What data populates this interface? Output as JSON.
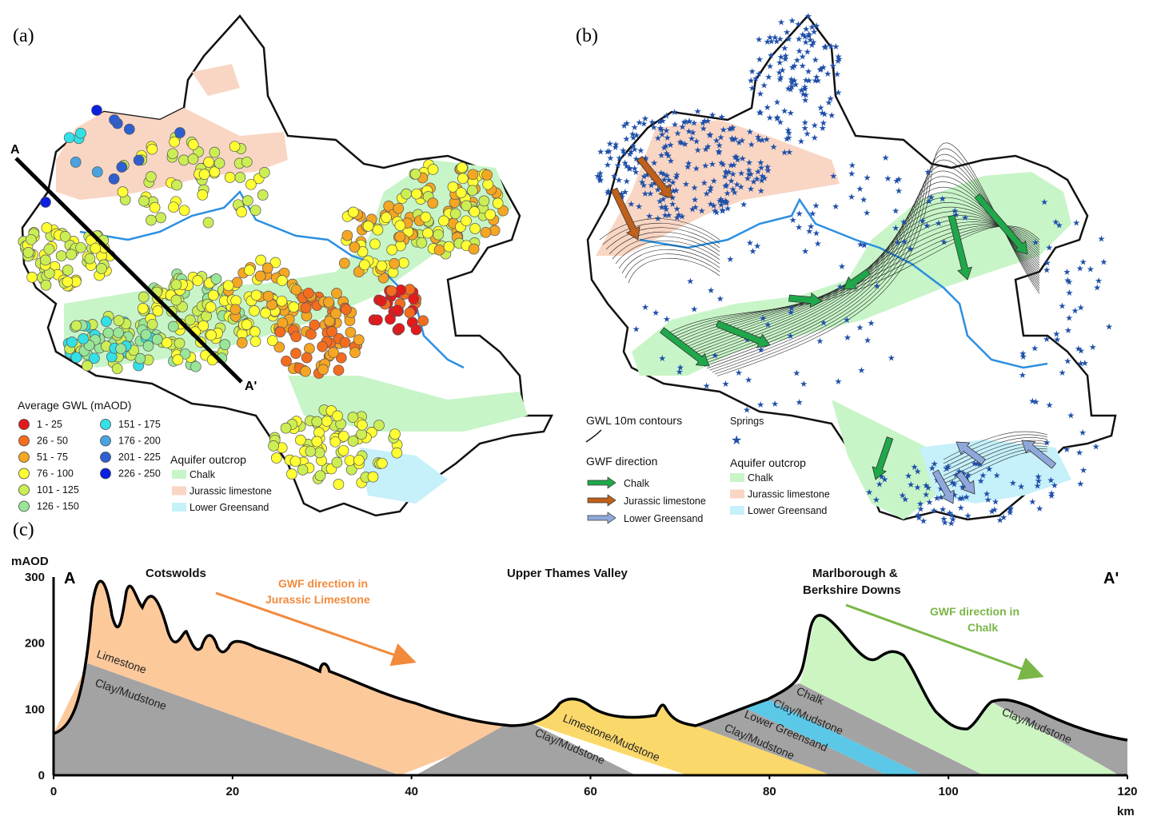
{
  "panels": {
    "a": "(a)",
    "b": "(b)",
    "c": "(c)"
  },
  "panel_a": {
    "section_start": "A",
    "section_end": "A'",
    "gwl_legend_title": "Average GWL (mAOD)",
    "gwl_classes": [
      {
        "label": "1 - 25",
        "color": "#e31a1c"
      },
      {
        "label": "26 - 50",
        "color": "#f46d1f"
      },
      {
        "label": "51 - 75",
        "color": "#f5a623"
      },
      {
        "label": "76 - 100",
        "color": "#ffff33"
      },
      {
        "label": "101 - 125",
        "color": "#ccee55"
      },
      {
        "label": "126 - 150",
        "color": "#99e699"
      },
      {
        "label": "151 - 175",
        "color": "#33e0e6"
      },
      {
        "label": "176 - 200",
        "color": "#4aa3e0"
      },
      {
        "label": "201 - 225",
        "color": "#2f5fcf"
      },
      {
        "label": "226 - 250",
        "color": "#0a1fe0"
      }
    ],
    "aquifer_title": "Aquifer outcrop",
    "aquifer_classes": [
      {
        "label": "Chalk",
        "color": "#c8f5c8"
      },
      {
        "label": "Jurassic limestone",
        "color": "#f9d6c4"
      },
      {
        "label": "Lower Greensand",
        "color": "#c6f0fa"
      }
    ]
  },
  "panel_b": {
    "contours_label": "GWL 10m contours",
    "springs_label": "Springs",
    "gwf_title": "GWF direction",
    "gwf_classes": [
      {
        "label": "Chalk",
        "color": "#1fa84a"
      },
      {
        "label": "Jurassic limestone",
        "color": "#c0601a"
      },
      {
        "label": "Lower Greensand",
        "color": "#8fa8dc"
      }
    ],
    "aquifer_title": "Aquifer outcrop",
    "aquifer_classes": [
      {
        "label": "Chalk",
        "color": "#c8f5c8"
      },
      {
        "label": "Jurassic limestone",
        "color": "#f9d6c4"
      },
      {
        "label": "Lower Greensand",
        "color": "#c6f0fa"
      }
    ],
    "spring_color": "#1f4fa8"
  },
  "panel_c": {
    "y_axis_label": "mAOD",
    "y_ticks": [
      "300",
      "200",
      "100",
      "0"
    ],
    "x_ticks": [
      "0",
      "20",
      "40",
      "60",
      "80",
      "100",
      "120"
    ],
    "x_unit": "km",
    "start_label": "A",
    "end_label": "A'",
    "region_cotswolds": "Cotswolds",
    "region_thames": "Upper Thames Valley",
    "region_downs_1": "Marlborough &",
    "region_downs_2": "Berkshire Downs",
    "gwf_jurassic_1": "GWF direction in",
    "gwf_jurassic_2": "Jurassic Limestone",
    "gwf_chalk_1": "GWF direction in",
    "gwf_chalk_2": "Chalk",
    "layers": {
      "limestone": "Limestone",
      "clay1": "Clay/Mudstone",
      "clay2": "Clay/Mudstone",
      "limestone_mudstone": "Limestone/Mudstone",
      "clay3": "Clay/Mudstone",
      "chalk": "Chalk",
      "clay4": "Clay/Mudstone",
      "lower_greensand": "Lower Greensand",
      "clay5": "Clay/Mudstone"
    },
    "colors": {
      "limestone": "#fcc99b",
      "clay": "#a3a3a3",
      "limestone_mudstone": "#fbd86a",
      "chalk": "#ccf5c2",
      "greensand": "#5cc8e8",
      "jurassic_arrow": "#f28a3c",
      "chalk_arrow": "#7ab648"
    }
  }
}
